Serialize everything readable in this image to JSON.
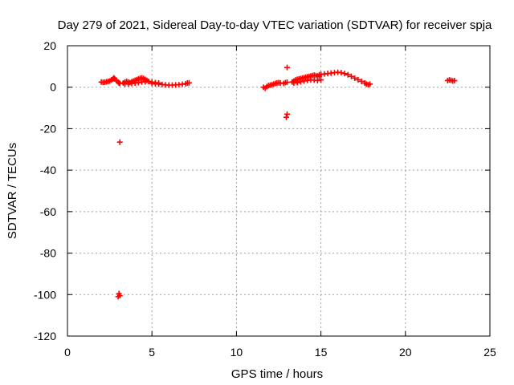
{
  "chart_data": {
    "type": "scatter",
    "title": "Day 279 of 2021, Sidereal Day-to-day VTEC variation (SDTVAR) for receiver spja",
    "xlabel": "GPS time / hours",
    "ylabel": "SDTVAR / TECUs",
    "xlim": [
      0,
      25
    ],
    "ylim": [
      -120,
      20
    ],
    "xticks": [
      0,
      5,
      10,
      15,
      20,
      25
    ],
    "yticks": [
      -120,
      -100,
      -80,
      -60,
      -40,
      -20,
      0,
      20
    ],
    "grid": true,
    "marker": "plus",
    "series_color": "#ff0000",
    "series": [
      {
        "points": [
          [
            2.0,
            2.5
          ],
          [
            2.1,
            2.3
          ],
          [
            2.2,
            2.4
          ],
          [
            2.3,
            2.6
          ],
          [
            2.4,
            2.8
          ],
          [
            2.5,
            3.0
          ],
          [
            2.6,
            3.5
          ],
          [
            2.7,
            4.0
          ],
          [
            2.75,
            4.5
          ],
          [
            2.8,
            4.0
          ],
          [
            2.9,
            3.2
          ],
          [
            3.0,
            2.5
          ],
          [
            3.05,
            2.0
          ],
          [
            3.1,
            1.8
          ],
          [
            3.3,
            2.0
          ],
          [
            3.4,
            2.5
          ],
          [
            3.5,
            2.8
          ],
          [
            3.6,
            2.5
          ],
          [
            3.7,
            2.2
          ],
          [
            3.8,
            2.6
          ],
          [
            3.9,
            3.0
          ],
          [
            4.0,
            3.3
          ],
          [
            4.1,
            3.6
          ],
          [
            4.2,
            4.0
          ],
          [
            4.3,
            4.3
          ],
          [
            4.4,
            4.5
          ],
          [
            4.5,
            4.2
          ],
          [
            4.6,
            3.8
          ],
          [
            4.7,
            3.3
          ],
          [
            3.4,
            1.5
          ],
          [
            3.6,
            1.6
          ],
          [
            3.8,
            1.8
          ],
          [
            4.0,
            2.0
          ],
          [
            4.2,
            2.2
          ],
          [
            4.4,
            2.5
          ],
          [
            4.6,
            2.6
          ],
          [
            4.8,
            2.8
          ],
          [
            5.0,
            2.5
          ],
          [
            5.2,
            2.2
          ],
          [
            5.4,
            2.0
          ],
          [
            5.0,
            1.8
          ],
          [
            5.2,
            1.6
          ],
          [
            5.4,
            1.5
          ],
          [
            5.6,
            1.3
          ],
          [
            5.8,
            1.1
          ],
          [
            6.0,
            1.0
          ],
          [
            6.2,
            1.0
          ],
          [
            6.4,
            1.1
          ],
          [
            6.6,
            1.2
          ],
          [
            6.8,
            1.4
          ],
          [
            7.0,
            1.7
          ],
          [
            7.1,
            2.0
          ],
          [
            7.2,
            2.1
          ],
          [
            3.1,
            -26.5
          ],
          [
            3.05,
            -99.5
          ],
          [
            3.1,
            -100.5
          ],
          [
            3.0,
            -101.0
          ],
          [
            11.6,
            0.0
          ],
          [
            11.7,
            -0.5
          ],
          [
            11.8,
            0.3
          ],
          [
            11.9,
            0.8
          ],
          [
            12.0,
            1.0
          ],
          [
            12.1,
            1.2
          ],
          [
            12.2,
            1.5
          ],
          [
            12.3,
            1.8
          ],
          [
            12.4,
            2.0
          ],
          [
            12.5,
            2.2
          ],
          [
            12.6,
            2.0
          ],
          [
            12.8,
            1.8
          ],
          [
            12.9,
            2.2
          ],
          [
            13.0,
            2.4
          ],
          [
            13.0,
            9.5
          ],
          [
            13.0,
            -13.0
          ],
          [
            12.95,
            -14.5
          ],
          [
            13.3,
            2.5
          ],
          [
            13.4,
            3.0
          ],
          [
            13.5,
            3.5
          ],
          [
            13.6,
            3.8
          ],
          [
            13.7,
            4.0
          ],
          [
            13.8,
            4.2
          ],
          [
            13.9,
            4.4
          ],
          [
            14.0,
            4.6
          ],
          [
            14.1,
            4.8
          ],
          [
            14.2,
            5.0
          ],
          [
            14.3,
            5.2
          ],
          [
            14.4,
            5.4
          ],
          [
            14.5,
            5.6
          ],
          [
            14.6,
            5.8
          ],
          [
            14.7,
            5.6
          ],
          [
            14.8,
            5.4
          ],
          [
            14.9,
            5.2
          ],
          [
            13.4,
            2.0
          ],
          [
            13.6,
            2.2
          ],
          [
            13.8,
            2.6
          ],
          [
            14.0,
            3.0
          ],
          [
            14.2,
            3.3
          ],
          [
            14.4,
            3.5
          ],
          [
            14.6,
            3.4
          ],
          [
            14.8,
            3.2
          ],
          [
            15.0,
            3.5
          ],
          [
            14.9,
            6.0
          ],
          [
            15.0,
            6.2
          ],
          [
            15.2,
            6.4
          ],
          [
            15.4,
            6.6
          ],
          [
            15.6,
            6.8
          ],
          [
            15.8,
            7.0
          ],
          [
            16.0,
            7.2
          ],
          [
            16.2,
            7.0
          ],
          [
            16.4,
            6.6
          ],
          [
            16.6,
            6.0
          ],
          [
            16.8,
            5.2
          ],
          [
            17.0,
            4.4
          ],
          [
            17.2,
            3.6
          ],
          [
            17.4,
            2.8
          ],
          [
            17.6,
            2.0
          ],
          [
            17.7,
            1.5
          ],
          [
            17.8,
            1.2
          ],
          [
            17.9,
            1.5
          ],
          [
            22.5,
            3.2
          ],
          [
            22.6,
            3.5
          ],
          [
            22.7,
            3.3
          ],
          [
            22.8,
            3.0
          ],
          [
            22.9,
            3.2
          ]
        ]
      }
    ]
  }
}
